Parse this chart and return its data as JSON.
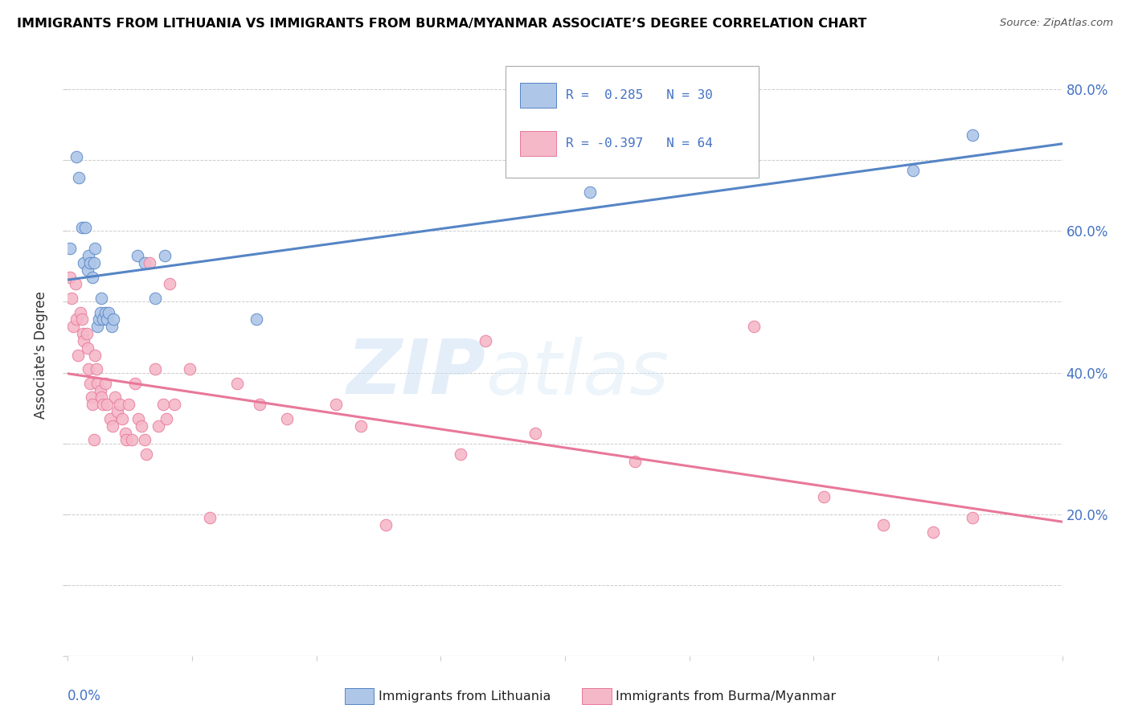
{
  "title": "IMMIGRANTS FROM LITHUANIA VS IMMIGRANTS FROM BURMA/MYANMAR ASSOCIATE’S DEGREE CORRELATION CHART",
  "source": "Source: ZipAtlas.com",
  "ylabel": "Associate's Degree",
  "blue_color": "#aec6e8",
  "pink_color": "#f5b8c8",
  "blue_line_color": "#5585c5",
  "pink_line_color": "#e8789a",
  "blue_scatter_x": [
    0.0005,
    0.0018,
    0.0022,
    0.0028,
    0.0032,
    0.0035,
    0.004,
    0.0042,
    0.0045,
    0.005,
    0.0052,
    0.0055,
    0.006,
    0.0062,
    0.0065,
    0.0068,
    0.007,
    0.0075,
    0.0078,
    0.0082,
    0.0088,
    0.0092,
    0.014,
    0.0155,
    0.0175,
    0.0195,
    0.038,
    0.105,
    0.17,
    0.182
  ],
  "blue_scatter_y": [
    0.575,
    0.705,
    0.675,
    0.605,
    0.555,
    0.605,
    0.545,
    0.565,
    0.555,
    0.535,
    0.555,
    0.575,
    0.465,
    0.475,
    0.485,
    0.505,
    0.475,
    0.485,
    0.475,
    0.485,
    0.465,
    0.475,
    0.565,
    0.555,
    0.505,
    0.565,
    0.475,
    0.655,
    0.685,
    0.735
  ],
  "pink_scatter_x": [
    0.0005,
    0.0008,
    0.001,
    0.0015,
    0.0018,
    0.002,
    0.0025,
    0.0028,
    0.003,
    0.0032,
    0.0038,
    0.004,
    0.0042,
    0.0045,
    0.0048,
    0.005,
    0.0052,
    0.0055,
    0.0058,
    0.006,
    0.0065,
    0.0068,
    0.007,
    0.0075,
    0.0078,
    0.0085,
    0.009,
    0.0095,
    0.01,
    0.0105,
    0.011,
    0.0115,
    0.0118,
    0.0122,
    0.0128,
    0.0135,
    0.0142,
    0.0148,
    0.0155,
    0.0158,
    0.0165,
    0.0175,
    0.0182,
    0.0192,
    0.0198,
    0.0205,
    0.0215,
    0.0245,
    0.0285,
    0.034,
    0.0385,
    0.044,
    0.054,
    0.059,
    0.064,
    0.079,
    0.084,
    0.094,
    0.114,
    0.138,
    0.152,
    0.164,
    0.174,
    0.182
  ],
  "pink_scatter_y": [
    0.535,
    0.505,
    0.465,
    0.525,
    0.475,
    0.425,
    0.485,
    0.475,
    0.455,
    0.445,
    0.455,
    0.435,
    0.405,
    0.385,
    0.365,
    0.355,
    0.305,
    0.425,
    0.405,
    0.385,
    0.375,
    0.365,
    0.355,
    0.385,
    0.355,
    0.335,
    0.325,
    0.365,
    0.345,
    0.355,
    0.335,
    0.315,
    0.305,
    0.355,
    0.305,
    0.385,
    0.335,
    0.325,
    0.305,
    0.285,
    0.555,
    0.405,
    0.325,
    0.355,
    0.335,
    0.525,
    0.355,
    0.405,
    0.195,
    0.385,
    0.355,
    0.335,
    0.355,
    0.325,
    0.185,
    0.285,
    0.445,
    0.315,
    0.275,
    0.465,
    0.225,
    0.185,
    0.175,
    0.195
  ],
  "xlim": [
    0.0,
    0.2
  ],
  "ylim": [
    0.0,
    0.85
  ],
  "yticks": [
    0.0,
    0.1,
    0.2,
    0.3,
    0.4,
    0.5,
    0.6,
    0.7,
    0.8
  ],
  "ytick_labels_right": [
    "",
    "",
    "20.0%",
    "",
    "40.0%",
    "",
    "60.0%",
    "",
    "80.0%"
  ],
  "xticks": [
    0.0,
    0.025,
    0.05,
    0.075,
    0.1,
    0.125,
    0.15,
    0.175,
    0.2
  ],
  "figsize": [
    14.06,
    8.92
  ],
  "dpi": 100
}
